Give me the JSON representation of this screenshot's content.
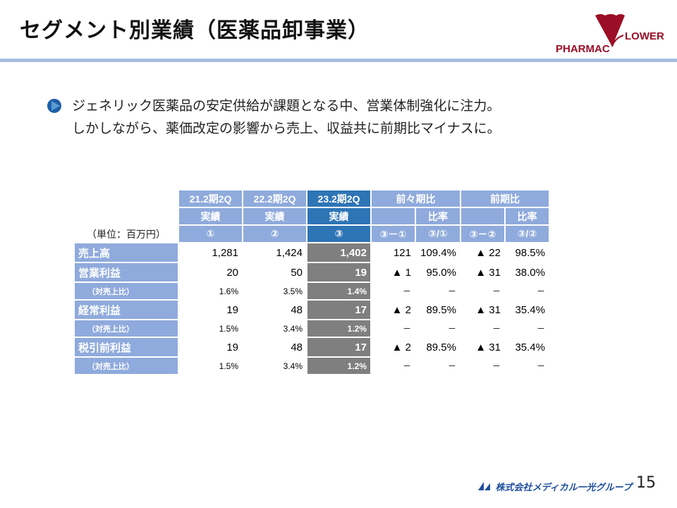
{
  "title": "セグメント別業績（医薬品卸事業）",
  "logo": {
    "left": "PHARMAC",
    "right": "LOWER",
    "color": "#9b0e25"
  },
  "lead": [
    "ジェネリック医薬品の安定供給が課題となる中、営業体制強化に注力。",
    "しかしながら、薬価改定の影響から売上、収益共に前期比マイナスに。"
  ],
  "table": {
    "unit": "（単位：百万円）",
    "headers": {
      "c1": "21.2期2Q",
      "c2": "22.2期2Q",
      "c3": "23.2期2Q",
      "actual": "実績",
      "prev2": "前々期比",
      "prev": "前期比",
      "ratio": "比率",
      "n1": "①",
      "n2": "②",
      "n3": "③",
      "d31": "③－①",
      "r31": "③/①",
      "d32": "③－②",
      "r32": "③/②"
    },
    "rows": [
      {
        "label": "売上高",
        "v": [
          "1,281",
          "1,424",
          "1,402",
          "121",
          "109.4%",
          "▲ 22",
          "98.5%"
        ]
      },
      {
        "label": "営業利益",
        "v": [
          "20",
          "50",
          "19",
          "▲ 1",
          "95.0%",
          "▲ 31",
          "38.0%"
        ]
      },
      {
        "label": "（対売上比）",
        "v": [
          "1.6%",
          "3.5%",
          "1.4%",
          "－",
          "－",
          "－",
          "－"
        ]
      },
      {
        "label": "経常利益",
        "v": [
          "19",
          "48",
          "17",
          "▲ 2",
          "89.5%",
          "▲ 31",
          "35.4%"
        ]
      },
      {
        "label": "（対売上比）",
        "v": [
          "1.5%",
          "3.4%",
          "1.2%",
          "－",
          "－",
          "－",
          "－"
        ]
      },
      {
        "label": "税引前利益",
        "v": [
          "19",
          "48",
          "17",
          "▲ 2",
          "89.5%",
          "▲ 31",
          "35.4%"
        ]
      },
      {
        "label": "（対売上比）",
        "v": [
          "1.5%",
          "3.4%",
          "1.2%",
          "－",
          "－",
          "－",
          "－"
        ]
      }
    ]
  },
  "footer": {
    "company": "株式会社メディカル一光グループ",
    "page": "15"
  }
}
